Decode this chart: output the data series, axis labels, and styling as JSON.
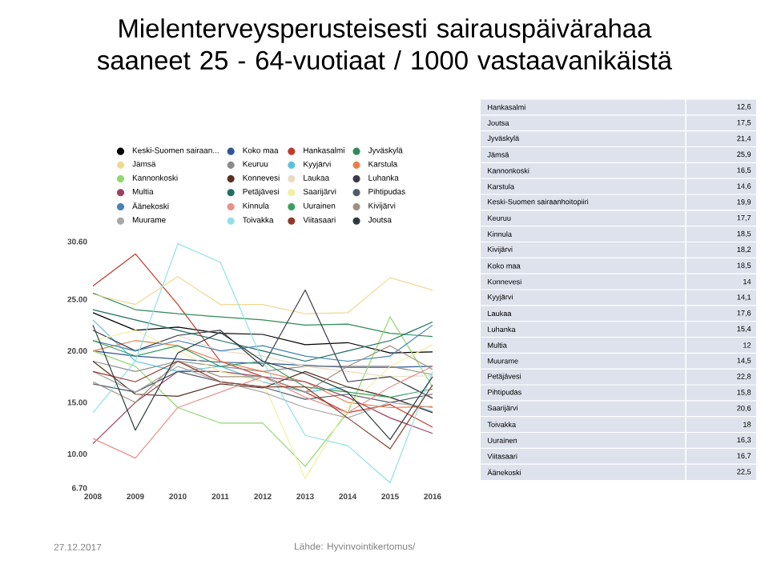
{
  "chart_data": [
    {
      "type": "line",
      "title": "Mielenterveysperusteisesti  sairauspäivärahaa saaneet 25 - 64-vuotiaat / 1000 vastaavanikäistä",
      "x": [
        2008,
        2009,
        2010,
        2011,
        2012,
        2013,
        2014,
        2015,
        2016
      ],
      "xlim": [
        2008,
        2016
      ],
      "xticks": [
        2008,
        2009,
        2010,
        2011,
        2012,
        2013,
        2014,
        2015,
        2016
      ],
      "ylim": [
        6.7,
        30.6
      ],
      "yticks": [
        {
          "value": 6.7,
          "label": "6.70"
        },
        {
          "value": 10,
          "label": "10.00"
        },
        {
          "value": 15,
          "label": "15.00"
        },
        {
          "value": 20,
          "label": "20.00"
        },
        {
          "value": 25,
          "label": "25.00"
        },
        {
          "value": 30.6,
          "label": "30.60"
        }
      ],
      "legend": "top",
      "grid": false,
      "annotations": [
        "27.12.2017",
        "Lähde:  Hyvinvointikertomus/"
      ],
      "series": [
        {
          "name": "Keski-Suomen sairaan...",
          "color": "#000000",
          "values": [
            23.7,
            22.0,
            22.3,
            21.7,
            21.6,
            20.6,
            20.8,
            19.8,
            19.9
          ]
        },
        {
          "name": "Koko maa",
          "color": "#2f5597",
          "values": [
            20,
            19.5,
            19.2,
            18.9,
            18.8,
            18.6,
            18.4,
            18.4,
            18.5
          ]
        },
        {
          "name": "Hankasalmi",
          "color": "#c0392b",
          "values": [
            26.3,
            29.4,
            24.5,
            19,
            17.5,
            16,
            14,
            14.8,
            12.6
          ]
        },
        {
          "name": "Jyväskylä",
          "color": "#2e8b57",
          "values": [
            25.6,
            24,
            23.6,
            23.3,
            23,
            22.5,
            22.6,
            21.7,
            21.4
          ]
        },
        {
          "name": "Jämsä",
          "color": "#f0d890",
          "values": [
            25.5,
            24.5,
            27.2,
            24.5,
            24.5,
            23.6,
            23.7,
            27.1,
            25.9
          ]
        },
        {
          "name": "Keuruu",
          "color": "#8c8c8c",
          "values": [
            19,
            18,
            19,
            18.5,
            18,
            18.5,
            18.5,
            18.5,
            17.7
          ]
        },
        {
          "name": "Kyyjärvi",
          "color": "#5bc0de",
          "values": [
            23,
            19,
            18,
            18.5,
            17,
            16,
            16.5,
            15.5,
            14.1
          ]
        },
        {
          "name": "Karstula",
          "color": "#e8804a",
          "values": [
            20,
            21,
            20.5,
            19,
            18,
            17,
            15,
            14.5,
            14.6
          ]
        },
        {
          "name": "Kannonkoski",
          "color": "#90d870",
          "values": [
            20,
            18.5,
            14.5,
            13,
            13,
            8.8,
            14,
            23.3,
            16.5
          ]
        },
        {
          "name": "Konnevesi",
          "color": "#5a3020",
          "values": [
            19,
            15.8,
            15.6,
            16.8,
            16.4,
            18,
            16.5,
            15.5,
            14
          ]
        },
        {
          "name": "Laukaa",
          "color": "#e8dcc0",
          "values": [
            21,
            20,
            21.5,
            20,
            19.5,
            18.5,
            18,
            17.5,
            17.6
          ]
        },
        {
          "name": "Luhanka",
          "color": "#3a3a4a",
          "values": [
            22,
            20,
            21.5,
            22,
            18.5,
            25.9,
            17,
            17.5,
            15.4
          ]
        },
        {
          "name": "Multia",
          "color": "#a04060",
          "values": [
            11,
            15,
            18,
            18,
            17.5,
            17,
            15.5,
            13.5,
            12
          ]
        },
        {
          "name": "Petäjävesi",
          "color": "#1f6f60",
          "values": [
            24,
            23,
            22,
            21,
            20,
            19,
            20,
            21,
            22.8
          ]
        },
        {
          "name": "Saarijärvi",
          "color": "#f0f0a0",
          "values": [
            21,
            22,
            20,
            18,
            17,
            7.6,
            14.5,
            18.5,
            20.6
          ]
        },
        {
          "name": "Pihtipudas",
          "color": "#505a6a",
          "values": [
            16.8,
            16,
            18,
            17,
            16.5,
            15.3,
            15.8,
            15,
            15.8
          ]
        },
        {
          "name": "Äänekoski",
          "color": "#4682b4",
          "values": [
            21,
            20,
            21,
            20,
            20.5,
            19.5,
            19,
            19.5,
            22.5
          ]
        },
        {
          "name": "Kinnula",
          "color": "#e8908a",
          "values": [
            11.5,
            9.6,
            14.5,
            16,
            17.5,
            15.5,
            14,
            16.5,
            18.5
          ]
        },
        {
          "name": "Uurainen",
          "color": "#3aa060",
          "values": [
            21,
            19.5,
            20.5,
            18.5,
            19,
            16.5,
            16,
            15.5,
            16.3
          ]
        },
        {
          "name": "Kivijärvi",
          "color": "#a09080",
          "values": [
            17,
            15,
            19,
            17.5,
            17.5,
            16,
            18.5,
            20.5,
            18.2
          ]
        },
        {
          "name": "Muurame",
          "color": "#a8a8a8",
          "values": [
            18,
            16,
            18.5,
            17,
            16,
            14.5,
            13.5,
            15,
            14.5
          ]
        },
        {
          "name": "Toivakka",
          "color": "#8fe0e8",
          "values": [
            14,
            19,
            30.4,
            28.6,
            19,
            11.8,
            10.8,
            7.2,
            18
          ]
        },
        {
          "name": "Viitasaari",
          "color": "#8b3a2a",
          "values": [
            18,
            17,
            19,
            17,
            16.5,
            16.5,
            13.5,
            10.5,
            16.7
          ]
        },
        {
          "name": "Joutsa",
          "color": "#2a3a3a",
          "values": [
            22.5,
            12.3,
            19.8,
            21.8,
            19,
            17.8,
            16,
            11.4,
            17.5
          ]
        }
      ]
    },
    {
      "type": "other",
      "categories": [
        "Hankasalmi",
        "Joutsa",
        "Jyväskylä",
        "Jämsä",
        "Kannonkoski",
        "Karstula",
        "Keski-Suomen sairaanhoitopiiri",
        "Keuruu",
        "Kinnula",
        "Kivijärvi",
        "Koko maa",
        "Konnevesi",
        "Kyyjärvi",
        "Laukaa",
        "Luhanka",
        "Multia",
        "Muurame",
        "Petäjävesi",
        "Pihtipudas",
        "Saarijärvi",
        "Toivakka",
        "Uurainen",
        "Viitasaari",
        "Äänekoski"
      ],
      "value_labels": [
        "12,6",
        "17,5",
        "21,4",
        "25,9",
        "16,5",
        "14,6",
        "19,9",
        "17,7",
        "18,5",
        "18,2",
        "18,5",
        "14",
        "14,1",
        "17,6",
        "15,4",
        "12",
        "14,5",
        "22,8",
        "15,8",
        "20,6",
        "18",
        "16,3",
        "16,7",
        "22,5"
      ]
    }
  ]
}
